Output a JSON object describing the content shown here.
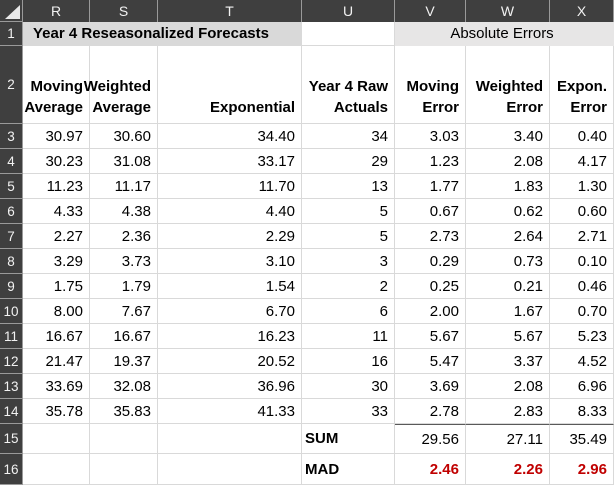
{
  "sheet": {
    "column_headers": [
      "R",
      "S",
      "T",
      "U",
      "V",
      "W",
      "X"
    ],
    "title_left": "Year 4 Reseasonalized Forecasts",
    "title_right": "Absolute Errors",
    "row1": {
      "num": "1"
    },
    "row2": {
      "num": "2",
      "cells": [
        "Moving\nAverage",
        "Weighted\nAverage",
        "Exponential",
        "Year 4 Raw\nActuals",
        "Moving\nError",
        "Weighted\nError",
        "Expon.\nError"
      ]
    },
    "data_rows": [
      {
        "row_num": "3",
        "cells": [
          "30.97",
          "30.60",
          "34.40",
          "34",
          "3.03",
          "3.40",
          "0.40"
        ]
      },
      {
        "row_num": "4",
        "cells": [
          "30.23",
          "31.08",
          "33.17",
          "29",
          "1.23",
          "2.08",
          "4.17"
        ]
      },
      {
        "row_num": "5",
        "cells": [
          "11.23",
          "11.17",
          "11.70",
          "13",
          "1.77",
          "1.83",
          "1.30"
        ]
      },
      {
        "row_num": "6",
        "cells": [
          "4.33",
          "4.38",
          "4.40",
          "5",
          "0.67",
          "0.62",
          "0.60"
        ]
      },
      {
        "row_num": "7",
        "cells": [
          "2.27",
          "2.36",
          "2.29",
          "5",
          "2.73",
          "2.64",
          "2.71"
        ]
      },
      {
        "row_num": "8",
        "cells": [
          "3.29",
          "3.73",
          "3.10",
          "3",
          "0.29",
          "0.73",
          "0.10"
        ]
      },
      {
        "row_num": "9",
        "cells": [
          "1.75",
          "1.79",
          "1.54",
          "2",
          "0.25",
          "0.21",
          "0.46"
        ]
      },
      {
        "row_num": "10",
        "cells": [
          "8.00",
          "7.67",
          "6.70",
          "6",
          "2.00",
          "1.67",
          "0.70"
        ]
      },
      {
        "row_num": "11",
        "cells": [
          "16.67",
          "16.67",
          "16.23",
          "11",
          "5.67",
          "5.67",
          "5.23"
        ]
      },
      {
        "row_num": "12",
        "cells": [
          "21.47",
          "19.37",
          "20.52",
          "16",
          "5.47",
          "3.37",
          "4.52"
        ]
      },
      {
        "row_num": "13",
        "cells": [
          "33.69",
          "32.08",
          "36.96",
          "30",
          "3.69",
          "2.08",
          "6.96"
        ]
      },
      {
        "row_num": "14",
        "cells": [
          "35.78",
          "35.83",
          "41.33",
          "33",
          "2.78",
          "2.83",
          "8.33"
        ]
      }
    ],
    "sum_row": {
      "num": "15",
      "label": "SUM",
      "values": [
        "29.56",
        "27.11",
        "35.49"
      ]
    },
    "mad_row": {
      "num": "16",
      "label": "MAD",
      "values": [
        "2.46",
        "2.26",
        "2.96"
      ]
    },
    "colors": {
      "header_bg": "#3f3f3f",
      "header_text": "#f2f2f2",
      "title_left_bg": "#d9d9d9",
      "title_right_bg": "#e7e6e6",
      "gridline": "#d9d9d9",
      "mad_value_color": "#c00000",
      "sum_top_border": "#595959"
    }
  }
}
